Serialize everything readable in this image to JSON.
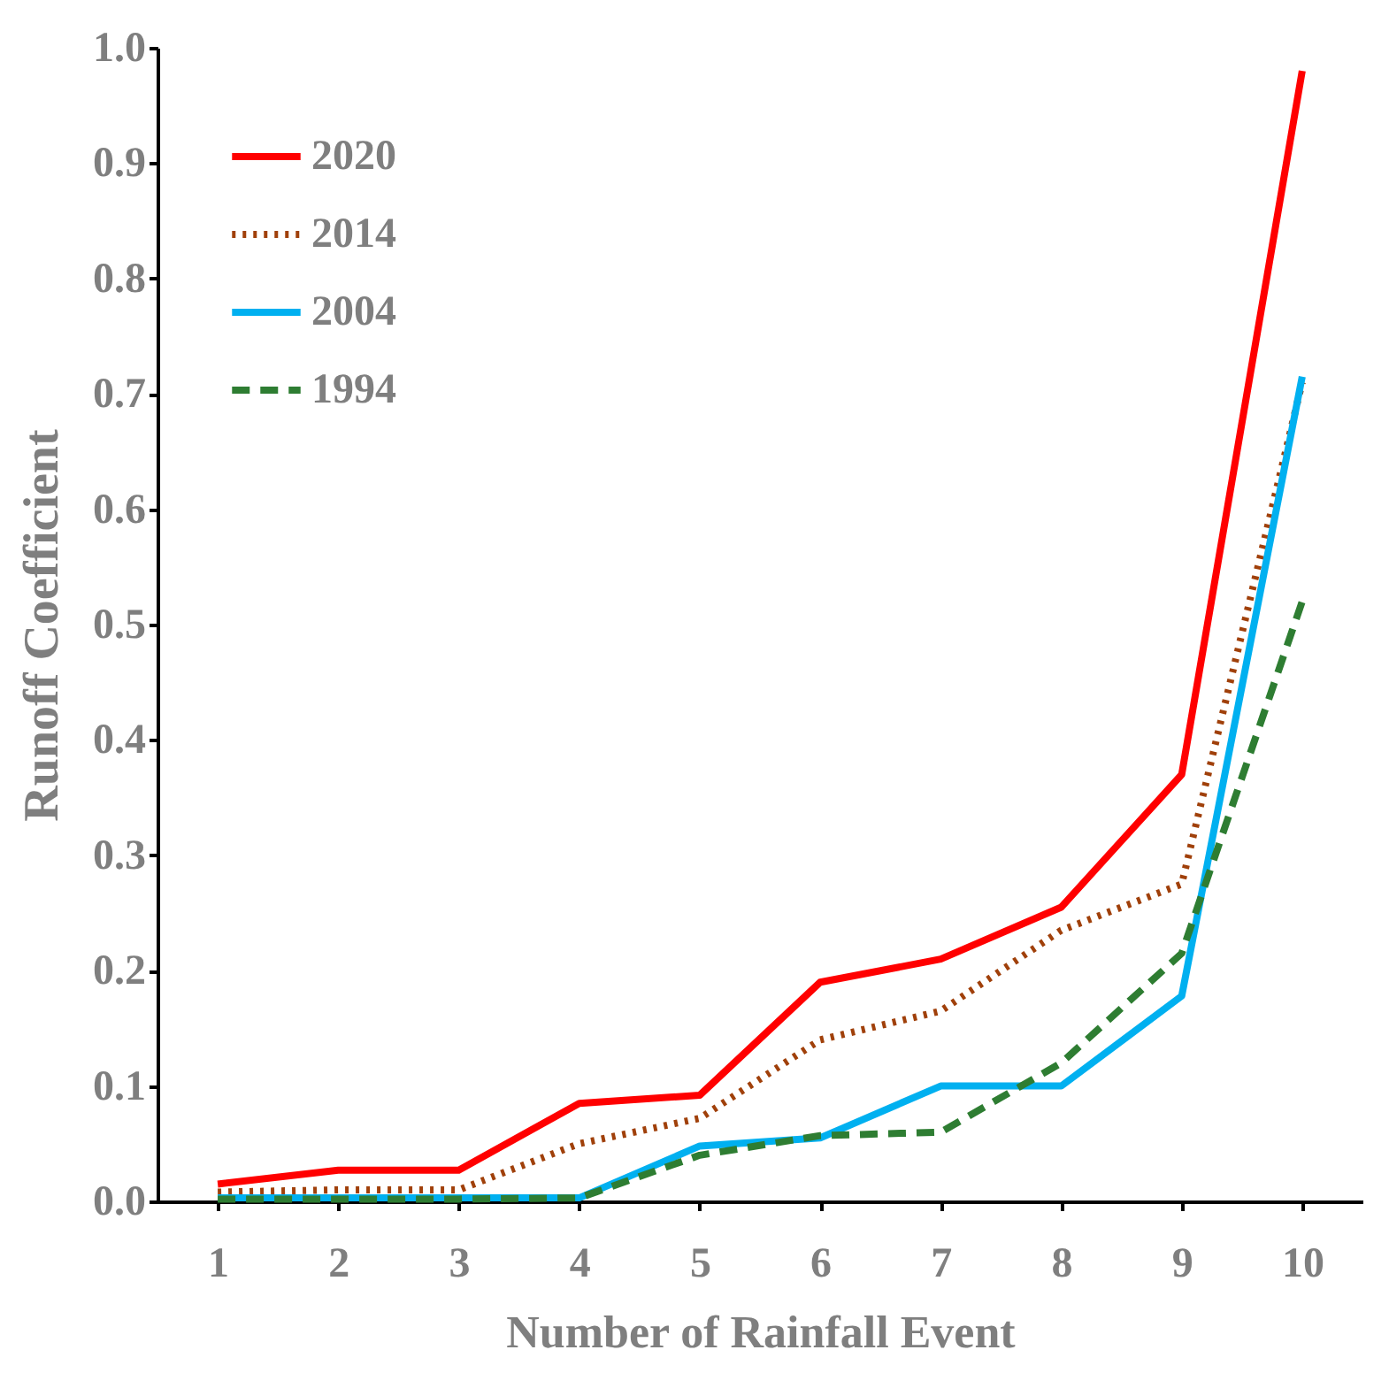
{
  "chart_data": {
    "type": "line",
    "xlabel": "Number of Rainfall Event",
    "ylabel": "Runoff Coefficient",
    "categories": [
      "1",
      "2",
      "3",
      "4",
      "5",
      "6",
      "7",
      "8",
      "9",
      "10"
    ],
    "ylim": [
      0,
      1
    ],
    "yticks": [
      {
        "value": 0,
        "label": "0.0"
      },
      {
        "value": 0.1,
        "label": "0.1"
      },
      {
        "value": 0.2,
        "label": "0.2"
      },
      {
        "value": 0.3,
        "label": "0.3"
      },
      {
        "value": 0.4,
        "label": "0.4"
      },
      {
        "value": 0.5,
        "label": "0.5"
      },
      {
        "value": 0.6,
        "label": "0.6"
      },
      {
        "value": 0.7,
        "label": "0.7"
      },
      {
        "value": 0.8,
        "label": "0.8"
      },
      {
        "value": 0.9,
        "label": "0.9"
      },
      {
        "value": 1,
        "label": "1.0"
      }
    ],
    "grid": false,
    "legend": "top left",
    "marker": "none",
    "series": [
      {
        "name": "2020",
        "color": "#ff0000",
        "line_style": "solid",
        "values": [
          0.015,
          0.027,
          0.027,
          0.085,
          0.092,
          0.19,
          0.21,
          0.255,
          0.37,
          0.98
        ]
      },
      {
        "name": "2014",
        "color": "#a0400a",
        "line_style": "dotted",
        "values": [
          0.008,
          0.01,
          0.01,
          0.05,
          0.072,
          0.14,
          0.165,
          0.235,
          0.275,
          0.71
        ]
      },
      {
        "name": "2004",
        "color": "#00b0f0",
        "line_style": "solid",
        "values": [
          0.003,
          0.003,
          0.003,
          0.003,
          0.048,
          0.055,
          0.1,
          0.1,
          0.178,
          0.715
        ]
      },
      {
        "name": "1994",
        "color": "#2e7d32",
        "line_style": "dashed",
        "values": [
          0.002,
          0.002,
          0.002,
          0.003,
          0.04,
          0.057,
          0.06,
          0.12,
          0.215,
          0.52
        ]
      }
    ]
  }
}
